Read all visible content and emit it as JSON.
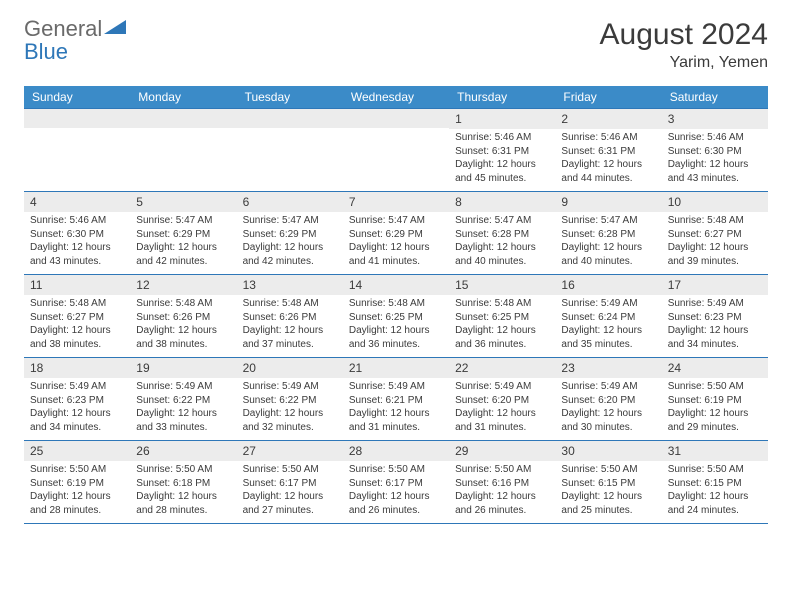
{
  "logo": {
    "text1": "General",
    "text2": "Blue"
  },
  "title": "August 2024",
  "location": "Yarim, Yemen",
  "weekdays": [
    "Sunday",
    "Monday",
    "Tuesday",
    "Wednesday",
    "Thursday",
    "Friday",
    "Saturday"
  ],
  "colors": {
    "header_bg": "#3b8bc8",
    "header_text": "#ffffff",
    "daynum_bg": "#ececec",
    "border": "#2e77b8",
    "text": "#3b3b3b",
    "logo_gray": "#6a6a6a",
    "logo_blue": "#2e77b8"
  },
  "weeks": [
    [
      {
        "n": "",
        "sr": "",
        "ss": "",
        "dl": ""
      },
      {
        "n": "",
        "sr": "",
        "ss": "",
        "dl": ""
      },
      {
        "n": "",
        "sr": "",
        "ss": "",
        "dl": ""
      },
      {
        "n": "",
        "sr": "",
        "ss": "",
        "dl": ""
      },
      {
        "n": "1",
        "sr": "Sunrise: 5:46 AM",
        "ss": "Sunset: 6:31 PM",
        "dl": "Daylight: 12 hours and 45 minutes."
      },
      {
        "n": "2",
        "sr": "Sunrise: 5:46 AM",
        "ss": "Sunset: 6:31 PM",
        "dl": "Daylight: 12 hours and 44 minutes."
      },
      {
        "n": "3",
        "sr": "Sunrise: 5:46 AM",
        "ss": "Sunset: 6:30 PM",
        "dl": "Daylight: 12 hours and 43 minutes."
      }
    ],
    [
      {
        "n": "4",
        "sr": "Sunrise: 5:46 AM",
        "ss": "Sunset: 6:30 PM",
        "dl": "Daylight: 12 hours and 43 minutes."
      },
      {
        "n": "5",
        "sr": "Sunrise: 5:47 AM",
        "ss": "Sunset: 6:29 PM",
        "dl": "Daylight: 12 hours and 42 minutes."
      },
      {
        "n": "6",
        "sr": "Sunrise: 5:47 AM",
        "ss": "Sunset: 6:29 PM",
        "dl": "Daylight: 12 hours and 42 minutes."
      },
      {
        "n": "7",
        "sr": "Sunrise: 5:47 AM",
        "ss": "Sunset: 6:29 PM",
        "dl": "Daylight: 12 hours and 41 minutes."
      },
      {
        "n": "8",
        "sr": "Sunrise: 5:47 AM",
        "ss": "Sunset: 6:28 PM",
        "dl": "Daylight: 12 hours and 40 minutes."
      },
      {
        "n": "9",
        "sr": "Sunrise: 5:47 AM",
        "ss": "Sunset: 6:28 PM",
        "dl": "Daylight: 12 hours and 40 minutes."
      },
      {
        "n": "10",
        "sr": "Sunrise: 5:48 AM",
        "ss": "Sunset: 6:27 PM",
        "dl": "Daylight: 12 hours and 39 minutes."
      }
    ],
    [
      {
        "n": "11",
        "sr": "Sunrise: 5:48 AM",
        "ss": "Sunset: 6:27 PM",
        "dl": "Daylight: 12 hours and 38 minutes."
      },
      {
        "n": "12",
        "sr": "Sunrise: 5:48 AM",
        "ss": "Sunset: 6:26 PM",
        "dl": "Daylight: 12 hours and 38 minutes."
      },
      {
        "n": "13",
        "sr": "Sunrise: 5:48 AM",
        "ss": "Sunset: 6:26 PM",
        "dl": "Daylight: 12 hours and 37 minutes."
      },
      {
        "n": "14",
        "sr": "Sunrise: 5:48 AM",
        "ss": "Sunset: 6:25 PM",
        "dl": "Daylight: 12 hours and 36 minutes."
      },
      {
        "n": "15",
        "sr": "Sunrise: 5:48 AM",
        "ss": "Sunset: 6:25 PM",
        "dl": "Daylight: 12 hours and 36 minutes."
      },
      {
        "n": "16",
        "sr": "Sunrise: 5:49 AM",
        "ss": "Sunset: 6:24 PM",
        "dl": "Daylight: 12 hours and 35 minutes."
      },
      {
        "n": "17",
        "sr": "Sunrise: 5:49 AM",
        "ss": "Sunset: 6:23 PM",
        "dl": "Daylight: 12 hours and 34 minutes."
      }
    ],
    [
      {
        "n": "18",
        "sr": "Sunrise: 5:49 AM",
        "ss": "Sunset: 6:23 PM",
        "dl": "Daylight: 12 hours and 34 minutes."
      },
      {
        "n": "19",
        "sr": "Sunrise: 5:49 AM",
        "ss": "Sunset: 6:22 PM",
        "dl": "Daylight: 12 hours and 33 minutes."
      },
      {
        "n": "20",
        "sr": "Sunrise: 5:49 AM",
        "ss": "Sunset: 6:22 PM",
        "dl": "Daylight: 12 hours and 32 minutes."
      },
      {
        "n": "21",
        "sr": "Sunrise: 5:49 AM",
        "ss": "Sunset: 6:21 PM",
        "dl": "Daylight: 12 hours and 31 minutes."
      },
      {
        "n": "22",
        "sr": "Sunrise: 5:49 AM",
        "ss": "Sunset: 6:20 PM",
        "dl": "Daylight: 12 hours and 31 minutes."
      },
      {
        "n": "23",
        "sr": "Sunrise: 5:49 AM",
        "ss": "Sunset: 6:20 PM",
        "dl": "Daylight: 12 hours and 30 minutes."
      },
      {
        "n": "24",
        "sr": "Sunrise: 5:50 AM",
        "ss": "Sunset: 6:19 PM",
        "dl": "Daylight: 12 hours and 29 minutes."
      }
    ],
    [
      {
        "n": "25",
        "sr": "Sunrise: 5:50 AM",
        "ss": "Sunset: 6:19 PM",
        "dl": "Daylight: 12 hours and 28 minutes."
      },
      {
        "n": "26",
        "sr": "Sunrise: 5:50 AM",
        "ss": "Sunset: 6:18 PM",
        "dl": "Daylight: 12 hours and 28 minutes."
      },
      {
        "n": "27",
        "sr": "Sunrise: 5:50 AM",
        "ss": "Sunset: 6:17 PM",
        "dl": "Daylight: 12 hours and 27 minutes."
      },
      {
        "n": "28",
        "sr": "Sunrise: 5:50 AM",
        "ss": "Sunset: 6:17 PM",
        "dl": "Daylight: 12 hours and 26 minutes."
      },
      {
        "n": "29",
        "sr": "Sunrise: 5:50 AM",
        "ss": "Sunset: 6:16 PM",
        "dl": "Daylight: 12 hours and 26 minutes."
      },
      {
        "n": "30",
        "sr": "Sunrise: 5:50 AM",
        "ss": "Sunset: 6:15 PM",
        "dl": "Daylight: 12 hours and 25 minutes."
      },
      {
        "n": "31",
        "sr": "Sunrise: 5:50 AM",
        "ss": "Sunset: 6:15 PM",
        "dl": "Daylight: 12 hours and 24 minutes."
      }
    ]
  ]
}
